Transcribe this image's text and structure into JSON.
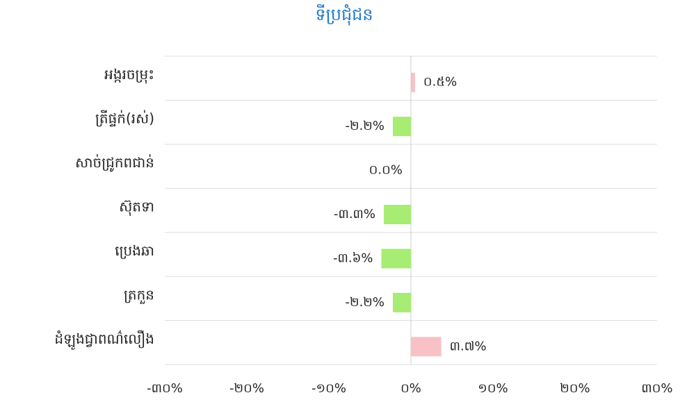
{
  "chart_data": {
    "type": "hbar",
    "title": "ទីប្រជុំជន",
    "categories": [
      "អង្ករចម្រុះ",
      "ត្រីផ្ទក់(រស់)",
      "សាច់ជ្រូកពជាន់",
      "ស៊ុតទា",
      "ប្រេងឆា",
      "ត្រកួន",
      "ដំឡូងជ្វាពណ៌លឿង"
    ],
    "values": [
      0.5,
      -2.2,
      0.0,
      -3.3,
      -3.6,
      -2.2,
      3.7
    ],
    "value_labels": [
      "០.៥%",
      "-២.២%",
      "០.០%",
      "-៣.៣%",
      "-៣.៦%",
      "-២.២%",
      "៣.៧%"
    ],
    "colors": [
      "#f8c1c5",
      "#a7ec73",
      "#a7ec73",
      "#a7ec73",
      "#a7ec73",
      "#a7ec73",
      "#f8c1c5"
    ],
    "xlim": [
      -30,
      30
    ],
    "xticks": [
      {
        "value": -30,
        "label": "-៣០%"
      },
      {
        "value": -20,
        "label": "-២០%"
      },
      {
        "value": -10,
        "label": "-១០%"
      },
      {
        "value": 0,
        "label": "០%"
      },
      {
        "value": 10,
        "label": "១០%"
      },
      {
        "value": 20,
        "label": "២០%"
      },
      {
        "value": 30,
        "label": "៣០%"
      }
    ],
    "grid": true
  }
}
